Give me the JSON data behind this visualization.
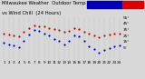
{
  "title_line1": "Milwaukee Weather  Outdoor Temp",
  "title_line2": "vs Wind Chill  (24 Hours)",
  "bg_color": "#d8d8d8",
  "plot_bg": "#d8d8d8",
  "temp_color": "#cc0000",
  "windchill_color": "#0000cc",
  "legend_temp_color": "#dd0000",
  "legend_wc_color": "#0000bb",
  "xlim": [
    0.5,
    24.5
  ],
  "ylim": [
    -15,
    55
  ],
  "yticks": [
    5,
    15,
    25,
    35,
    45,
    55
  ],
  "ytick_labels": [
    "5°",
    "15°",
    "25°",
    "35°",
    "45°",
    "55°"
  ],
  "xtick_positions": [
    1,
    2,
    3,
    4,
    5,
    6,
    7,
    8,
    9,
    10,
    11,
    12,
    13,
    14,
    15,
    16,
    17,
    18,
    19,
    20,
    21,
    22,
    23,
    24
  ],
  "xtick_labels": [
    "1",
    "2",
    "3",
    "4",
    "5",
    "6",
    "7",
    "8",
    "9",
    "10",
    "11",
    "12",
    "13",
    "14",
    "15",
    "16",
    "17",
    "18",
    "19",
    "20",
    "21",
    "22",
    "23",
    "24"
  ],
  "vgrid_positions": [
    1,
    2,
    3,
    4,
    5,
    6,
    7,
    8,
    9,
    10,
    11,
    12,
    13,
    14,
    15,
    16,
    17,
    18,
    19,
    20,
    21,
    22,
    23,
    24
  ],
  "temp_x": [
    1,
    2,
    3,
    4,
    5,
    6,
    7,
    8,
    9,
    10,
    11,
    12,
    13,
    14,
    15,
    16,
    17,
    18,
    19,
    20,
    21,
    22,
    23,
    24
  ],
  "temp_y": [
    28,
    27,
    26,
    24,
    32,
    38,
    42,
    41,
    40,
    38,
    36,
    34,
    31,
    33,
    37,
    36,
    32,
    28,
    25,
    23,
    25,
    27,
    28,
    29
  ],
  "wc_x": [
    1,
    2,
    3,
    4,
    5,
    6,
    7,
    8,
    9,
    10,
    11,
    12,
    13,
    14,
    15,
    16,
    17,
    18,
    19,
    20,
    21,
    22,
    23,
    24
  ],
  "wc_y": [
    14,
    11,
    9,
    6,
    16,
    27,
    34,
    33,
    29,
    25,
    20,
    16,
    11,
    17,
    26,
    24,
    17,
    8,
    3,
    -3,
    1,
    5,
    7,
    9
  ],
  "dot_size": 2.5,
  "title_fontsize": 3.8,
  "tick_fontsize": 3.0,
  "legend_label_fontsize": 3.2
}
